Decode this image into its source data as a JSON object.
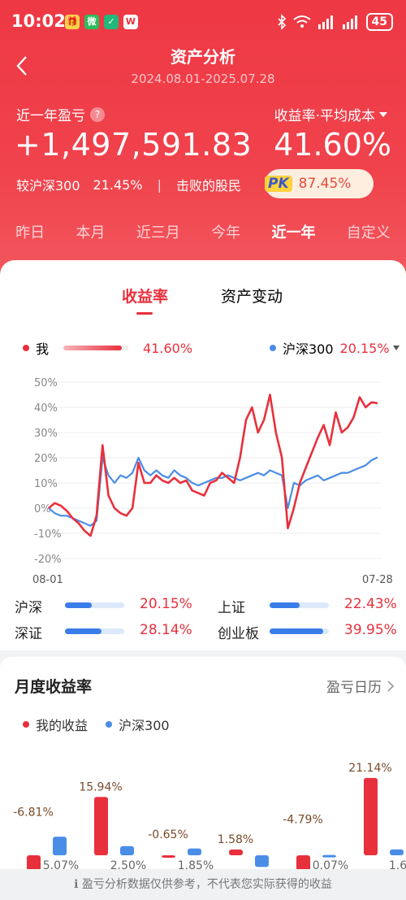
{
  "status": {
    "time": "10:02",
    "battery": "45",
    "apps": [
      "🎁",
      "微",
      "✓",
      "W"
    ]
  },
  "nav": {
    "title": "资产分析",
    "date_range": "2024.08.01-2025.07.28"
  },
  "summary": {
    "pnl_label": "近一年盈亏",
    "help_icon": "?",
    "rate_label": "收益率·平均成本",
    "pnl_value": "+1,497,591.83",
    "rate_value": "41.60%",
    "cmp_label": "较沪深300",
    "cmp_value": "21.45%",
    "sep": "|",
    "beat_label": "击败的股民",
    "pk_text": "PK",
    "beat_value": "87.45%"
  },
  "tabs": [
    "昨日",
    "本月",
    "近三月",
    "今年",
    "近一年",
    "自定义"
  ],
  "active_tab": 4,
  "segments": {
    "left": "收益率",
    "right": "资产变动"
  },
  "legend": {
    "me_label": "我",
    "me_value": "41.60%",
    "index_label": "沪深300",
    "index_value": "20.15%"
  },
  "chart_data": {
    "type": "line",
    "x_start": "08-01",
    "x_end": "07-28",
    "y_ticks": [
      "50%",
      "40%",
      "30%",
      "20%",
      "10%",
      "0%",
      "-10%",
      "-20%"
    ],
    "ylim": [
      -20,
      50
    ],
    "series": [
      {
        "name": "我",
        "color": "#e8303c",
        "values": [
          0,
          2,
          1,
          -1,
          -4,
          -6,
          -9,
          -11,
          -3,
          25,
          5,
          0,
          -2,
          -3,
          0,
          18,
          10,
          10,
          13,
          11,
          10,
          12,
          10,
          11,
          7,
          6,
          5,
          10,
          11,
          14,
          12,
          10,
          20,
          35,
          40,
          30,
          35,
          45,
          30,
          20,
          -8,
          0,
          10,
          16,
          22,
          28,
          33,
          25,
          38,
          30,
          32,
          36,
          44,
          40,
          42,
          41.6
        ]
      },
      {
        "name": "沪深300",
        "color": "#4a8de6",
        "values": [
          0,
          -2,
          -3,
          -3,
          -4,
          -5,
          -6,
          -7,
          -5,
          20,
          13,
          10,
          13,
          12,
          14,
          20,
          15,
          13,
          15,
          13,
          12,
          15,
          13,
          12,
          10,
          9,
          10,
          11,
          12,
          12,
          13,
          12,
          11,
          12,
          13,
          14,
          13,
          15,
          14,
          13,
          0,
          10,
          9,
          11,
          12,
          13,
          11,
          12,
          13,
          14,
          14,
          15,
          16,
          17,
          19,
          20.15
        ]
      }
    ]
  },
  "indices": [
    {
      "name": "沪深",
      "value": "20.15%",
      "fill": 0.45
    },
    {
      "name": "上证",
      "value": "22.43%",
      "fill": 0.5
    },
    {
      "name": "深证",
      "value": "28.14%",
      "fill": 0.62
    },
    {
      "name": "创业板",
      "value": "39.95%",
      "fill": 0.9
    }
  ],
  "monthly": {
    "title": "月度收益率",
    "calendar_link": "盈亏日历",
    "legend_me": "我的收益",
    "legend_index": "沪深300",
    "me_values": [
      "-6.81%",
      "15.94%",
      "-0.65%",
      "1.58%",
      "-4.79%",
      "21.14%"
    ],
    "me_nums": [
      -6.81,
      15.94,
      -0.65,
      1.58,
      -4.79,
      21.14
    ],
    "index_values": [
      "5.07%",
      "2.50%",
      "1.85%",
      "",
      "0.07%",
      "1.6"
    ],
    "index_nums": [
      5.07,
      2.5,
      1.85,
      -3.2,
      0.07,
      1.6
    ]
  },
  "footer": {
    "info_icon": "ℹ",
    "text": "盈亏分析数据仅供参考，不代表您实际获得的收益"
  }
}
